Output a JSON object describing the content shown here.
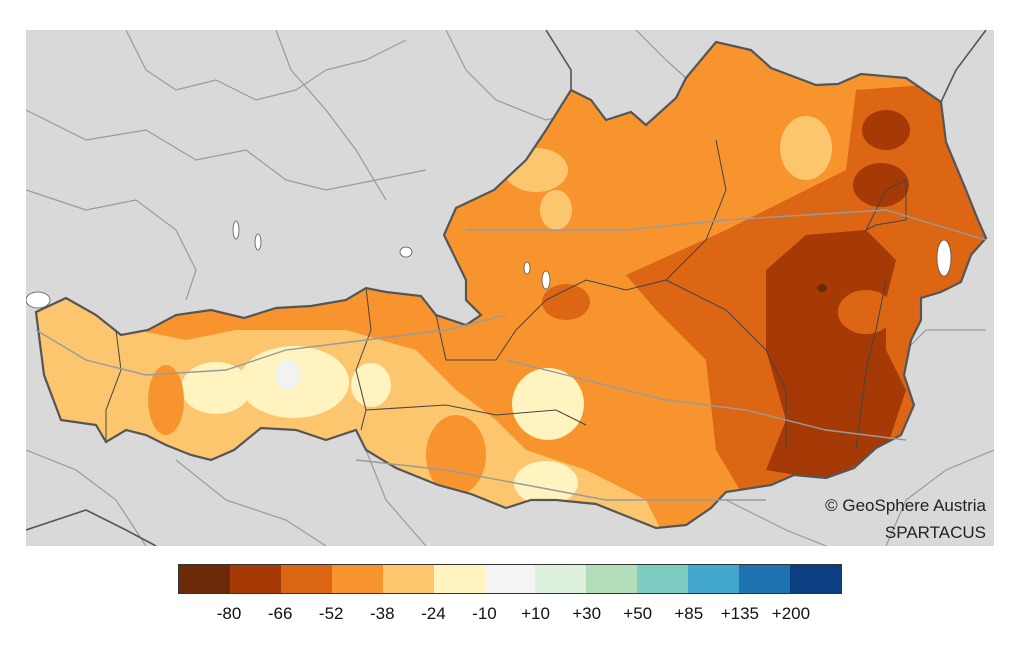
{
  "map": {
    "credit_line1": "© GeoSphere Austria",
    "credit_line2": "SPARTACUS",
    "background_color": "#d9d9d9",
    "border_color": "#555555",
    "river_color": "#9a9a9a",
    "lake_color": "#ffffff"
  },
  "legend": {
    "colors": [
      "#6b2a08",
      "#a63a06",
      "#dd6614",
      "#f7942e",
      "#fcc66e",
      "#fff3c0",
      "#f4f4f4",
      "#dcf0dc",
      "#b2ddb9",
      "#7fccc2",
      "#43a6cc",
      "#1f72b0",
      "#0b3f82"
    ],
    "labels": [
      "-80",
      "-66",
      "-52",
      "-38",
      "-24",
      "-10",
      "+10",
      "+30",
      "+50",
      "+85",
      "+135",
      "+200"
    ]
  }
}
